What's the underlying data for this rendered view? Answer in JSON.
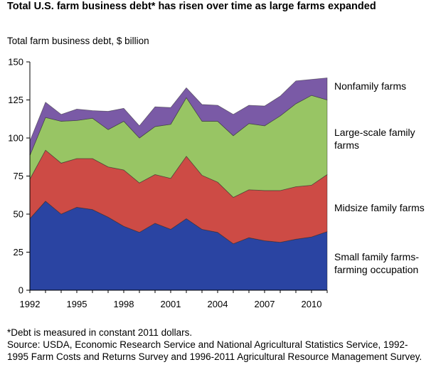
{
  "title": "Total U.S. farm business debt* has risen over time as large farms expanded",
  "chart_data": {
    "type": "area",
    "stacked": true,
    "title": "Total U.S. farm business debt* has risen over time as large farms expanded",
    "ylabel": "Total farm business debt, $ billion",
    "xlabel": "",
    "xlim": [
      1992,
      2011
    ],
    "ylim": [
      0,
      150
    ],
    "x_ticks": [
      "1992",
      "1995",
      "1998",
      "2001",
      "2004",
      "2007",
      "2010"
    ],
    "y_ticks": [
      "0",
      "25",
      "50",
      "75",
      "100",
      "125",
      "150"
    ],
    "x": [
      1992,
      1993,
      1994,
      1995,
      1996,
      1997,
      1998,
      1999,
      2000,
      2001,
      2002,
      2003,
      2004,
      2005,
      2006,
      2007,
      2008,
      2009,
      2010,
      2011
    ],
    "series": [
      {
        "name": "Small family farms-farming occupation",
        "color": "#2a44a2",
        "values": [
          47,
          58.5,
          50,
          54.5,
          53,
          48,
          42,
          38,
          44,
          40,
          47,
          40,
          38,
          30.5,
          34.5,
          32.5,
          31.5,
          33.5,
          35,
          38.5
        ]
      },
      {
        "name": "Midsize family farms",
        "color": "#cd4b45",
        "values": [
          26,
          33.5,
          33.5,
          32,
          33.5,
          33,
          37,
          32.5,
          32,
          33.5,
          41,
          35.5,
          33,
          30.5,
          31.5,
          33,
          34,
          34.5,
          34,
          37.5
        ]
      },
      {
        "name": "Large-scale family farms",
        "color": "#98c564",
        "values": [
          15.5,
          21.5,
          27.5,
          25,
          26.5,
          24.5,
          32,
          29.5,
          31.5,
          35.5,
          38.5,
          35.5,
          40,
          40.5,
          43.5,
          42.5,
          49,
          54.5,
          59,
          49
        ]
      },
      {
        "name": "Nonfamily farms",
        "color": "#7a5aa6",
        "values": [
          9.5,
          10,
          4.5,
          7.5,
          5,
          12,
          8.5,
          8,
          13,
          11,
          6.5,
          11,
          10.5,
          14,
          12,
          13,
          13,
          15,
          10.5,
          14.5
        ]
      }
    ],
    "series_labels": [
      {
        "series": 3,
        "lines": [
          "Nonfamily farms"
        ]
      },
      {
        "series": 2,
        "lines": [
          "Large-scale family",
          "farms"
        ]
      },
      {
        "series": 1,
        "lines": [
          "Midsize family farms"
        ]
      },
      {
        "series": 0,
        "lines": [
          "Small family farms-",
          "farming occupation"
        ]
      }
    ],
    "grid": false,
    "legend": "labels-right"
  },
  "footnote": {
    "line1": "*Debt is measured in constant 2011 dollars.",
    "line2": "Source: USDA, Economic Research Service and National Agricultural Statistics Service, 1992-1995 Farm Costs and Returns Survey and 1996-2011 Agricultural Resource Management Survey."
  }
}
